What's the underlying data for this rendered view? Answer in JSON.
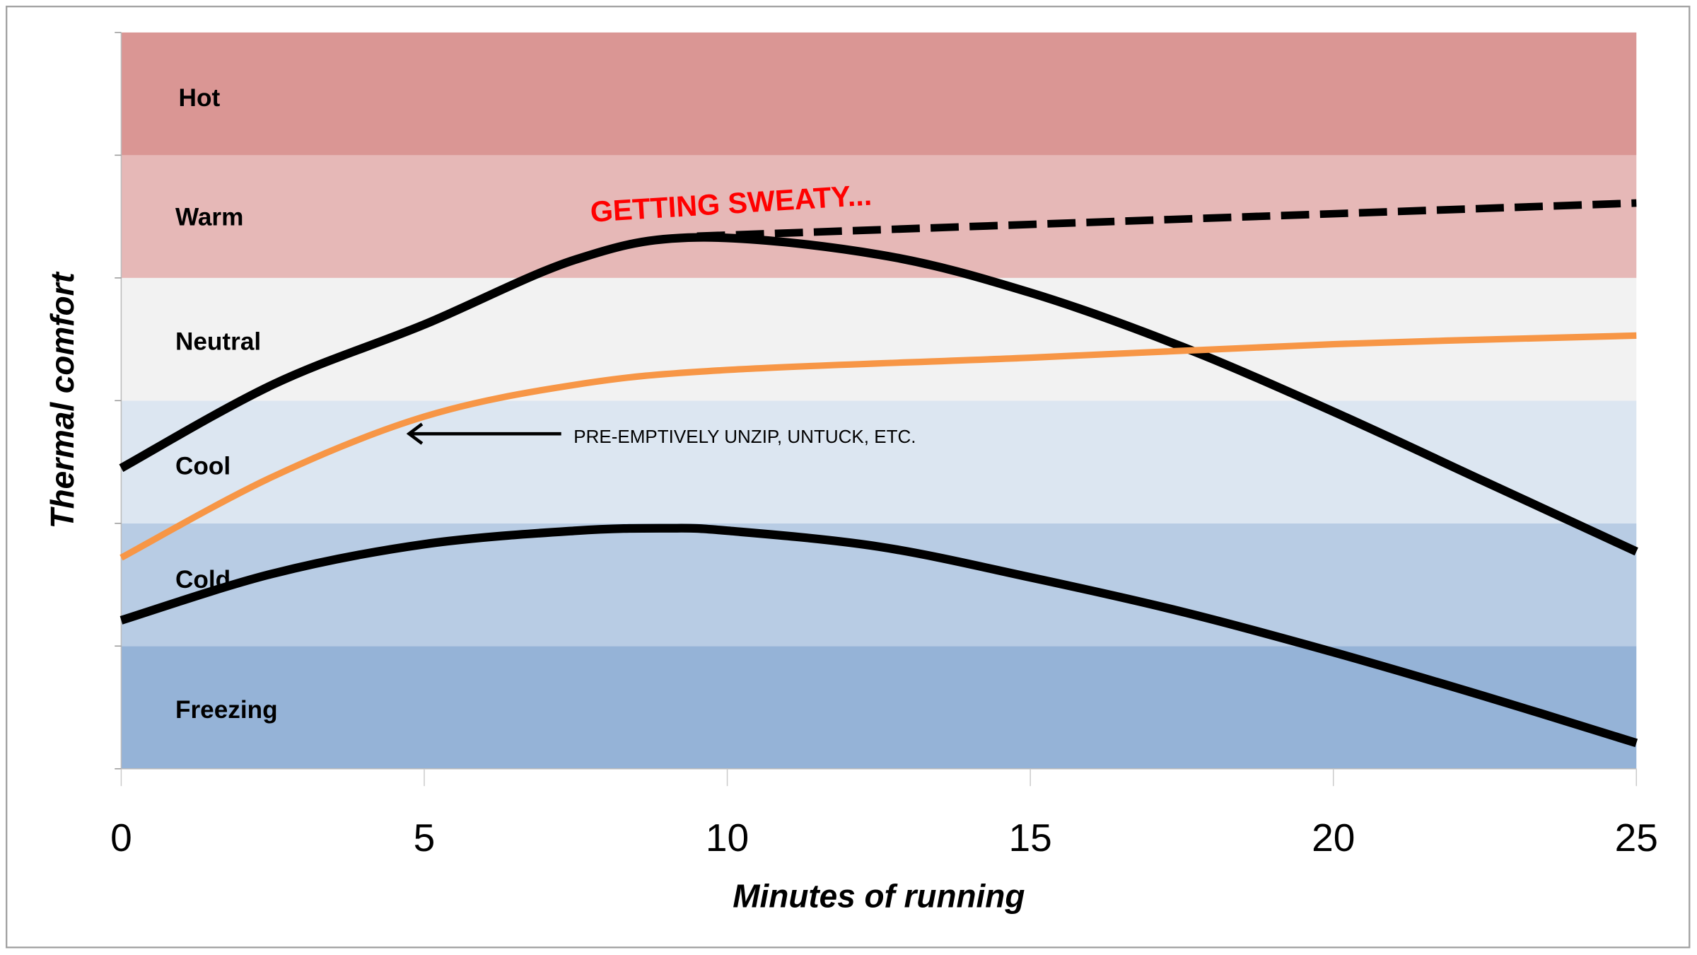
{
  "chart_data": {
    "type": "line",
    "title": "",
    "xlabel": "Minutes of running",
    "ylabel": "Thermal comfort",
    "xlim": [
      0,
      25
    ],
    "xticks": [
      "0",
      "5",
      "10",
      "15",
      "20",
      "25"
    ],
    "grid": false,
    "bands": [
      {
        "label": "Freezing",
        "color": "#95b3d7"
      },
      {
        "label": "Cold",
        "color": "#b8cce4"
      },
      {
        "label": "Cool",
        "color": "#dce6f1"
      },
      {
        "label": "Neutral",
        "color": "#f2f2f2"
      },
      {
        "label": "Warm",
        "color": "#e6b8b7"
      },
      {
        "label": "Hot",
        "color": "#da9694"
      }
    ],
    "series": [
      {
        "color": "#000000",
        "style": "solid",
        "x": [
          0,
          2.5,
          5,
          7.5,
          9.5,
          12.5,
          15,
          17.5,
          20,
          22.5,
          25
        ],
        "y": [
          2.45,
          3.13,
          3.62,
          4.15,
          4.33,
          4.19,
          3.88,
          3.44,
          2.91,
          2.34,
          1.77
        ]
      },
      {
        "color": "#000000",
        "style": "dashed",
        "x": [
          9.5,
          25
        ],
        "y": [
          4.34,
          4.61
        ]
      },
      {
        "color": "#f79646",
        "style": "solid",
        "x": [
          0,
          2.5,
          5,
          7.5,
          10,
          15,
          20,
          25
        ],
        "y": [
          1.72,
          2.38,
          2.87,
          3.13,
          3.25,
          3.35,
          3.46,
          3.53
        ]
      },
      {
        "color": "#000000",
        "style": "solid",
        "x": [
          0,
          2.5,
          5,
          7.5,
          9,
          10,
          12.5,
          15,
          17.5,
          20,
          22.5,
          25
        ],
        "y": [
          1.21,
          1.59,
          1.83,
          1.94,
          1.96,
          1.94,
          1.81,
          1.56,
          1.28,
          0.95,
          0.59,
          0.21
        ]
      }
    ],
    "annotations": [
      {
        "text": "GETTING SWEATY...",
        "color": "#ff0000"
      },
      {
        "text": "PRE-EMPTIVELY UNZIP, UNTUCK, ETC.",
        "color": "#000000",
        "arrow_from": [
          7.26,
          2.73
        ],
        "arrow_to": [
          4.75,
          2.73
        ]
      }
    ]
  }
}
